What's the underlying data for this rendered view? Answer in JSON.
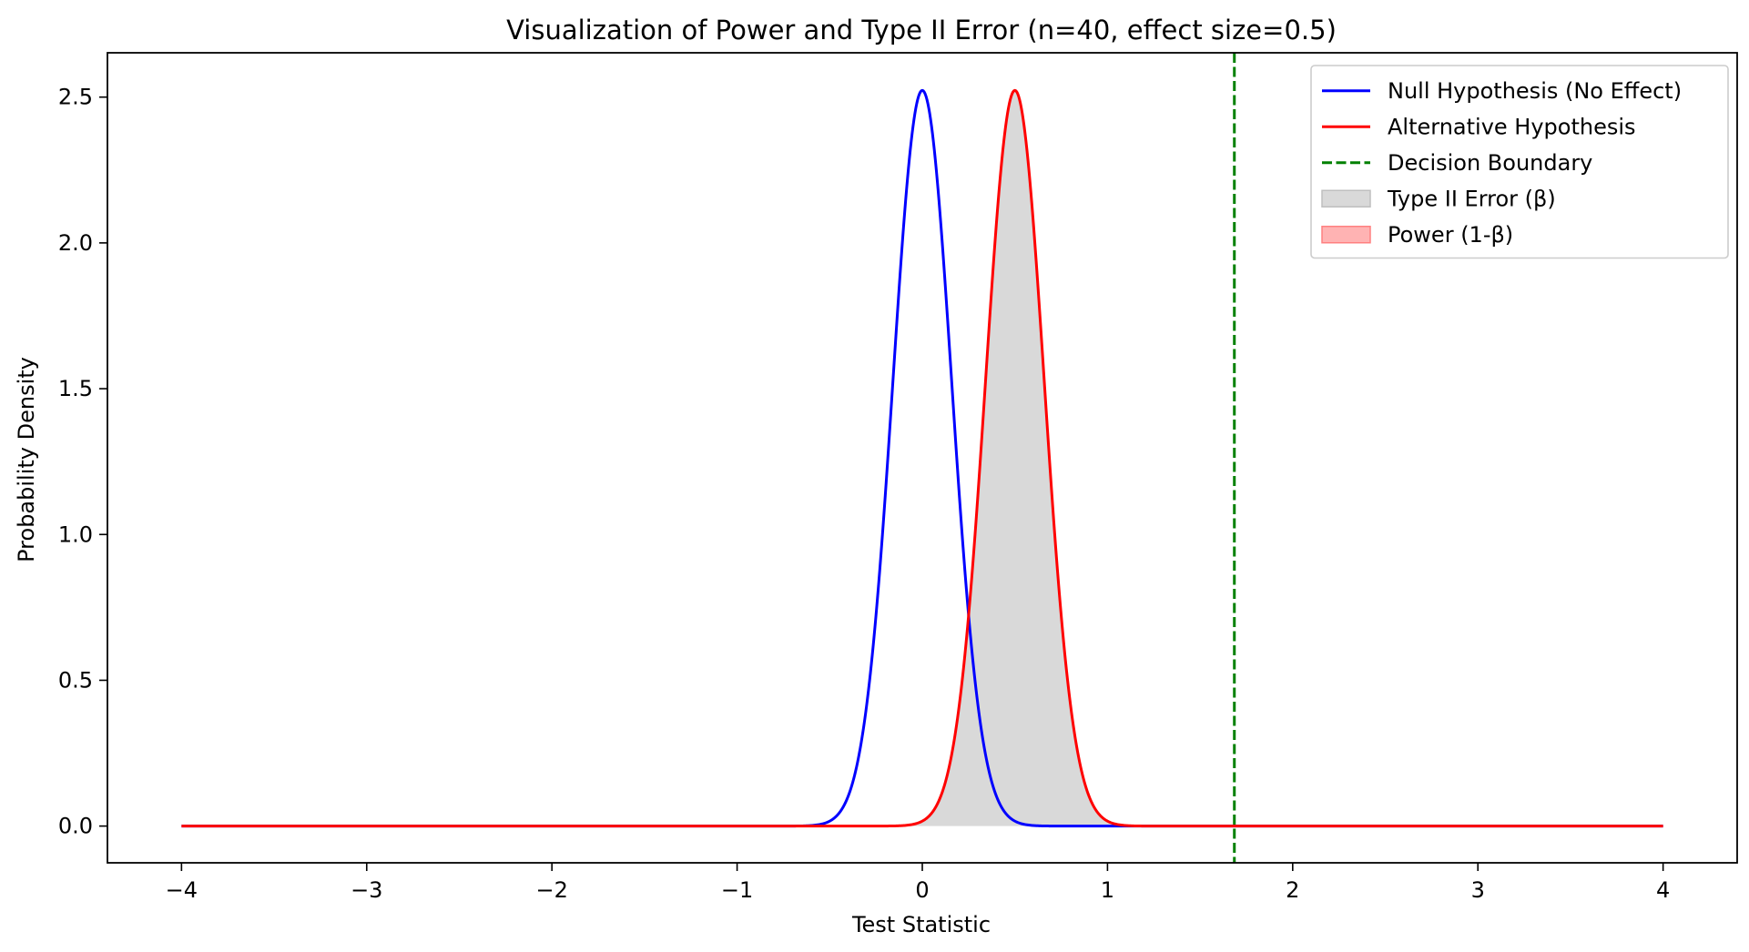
{
  "chart_data": {
    "type": "line",
    "title": "Visualization of Power and Type II Error (n=40, effect size=0.5)",
    "xlabel": "Test Statistic",
    "ylabel": "Probability Density",
    "xlim": [
      -4.4,
      4.4
    ],
    "ylim": [
      -0.126,
      2.652
    ],
    "xticks": [
      -4,
      -3,
      -2,
      -1,
      0,
      1,
      2,
      3,
      4
    ],
    "xtick_labels": [
      "−4",
      "−3",
      "−2",
      "−1",
      "0",
      "1",
      "2",
      "3",
      "4"
    ],
    "yticks": [
      0.0,
      0.5,
      1.0,
      1.5,
      2.0,
      2.5
    ],
    "ytick_labels": [
      "0.0",
      "0.5",
      "1.0",
      "1.5",
      "2.0",
      "2.5"
    ],
    "x_range": [
      -4,
      4
    ],
    "series": [
      {
        "name": "Null Hypothesis (No Effect)",
        "kind": "normal_pdf",
        "mean": 0.0,
        "sd": 0.1581,
        "peak": 2.523,
        "color": "#0000ff"
      },
      {
        "name": "Alternative Hypothesis",
        "kind": "normal_pdf",
        "mean": 0.5,
        "sd": 0.1581,
        "peak": 2.523,
        "color": "#ff0000"
      }
    ],
    "decision_boundary": {
      "name": "Decision Boundary",
      "x": 1.685,
      "color": "#008000",
      "style": "dashed"
    },
    "areas": [
      {
        "name": "Type II Error (β)",
        "under_series": "Alternative Hypothesis",
        "x_from": -4,
        "x_to": 1.685,
        "color": "#d9d9d9"
      },
      {
        "name": "Power (1-β)",
        "under_series": "Alternative Hypothesis",
        "x_from": 1.685,
        "x_to": 4,
        "color": "#ffb3b3"
      }
    ],
    "legend": {
      "placement": "top-right",
      "entries": [
        {
          "label": "Null Hypothesis (No Effect)",
          "kind": "line",
          "color": "#0000ff"
        },
        {
          "label": "Alternative Hypothesis",
          "kind": "line",
          "color": "#ff0000"
        },
        {
          "label": "Decision Boundary",
          "kind": "dashed",
          "color": "#008000"
        },
        {
          "label": "Type II Error (β)",
          "kind": "patch",
          "color": "#d9d9d9",
          "edge": "#bfbfbf"
        },
        {
          "label": "Power (1-β)",
          "kind": "patch",
          "color": "#ffb3b3",
          "edge": "#ff8080"
        }
      ]
    },
    "grid": false
  }
}
